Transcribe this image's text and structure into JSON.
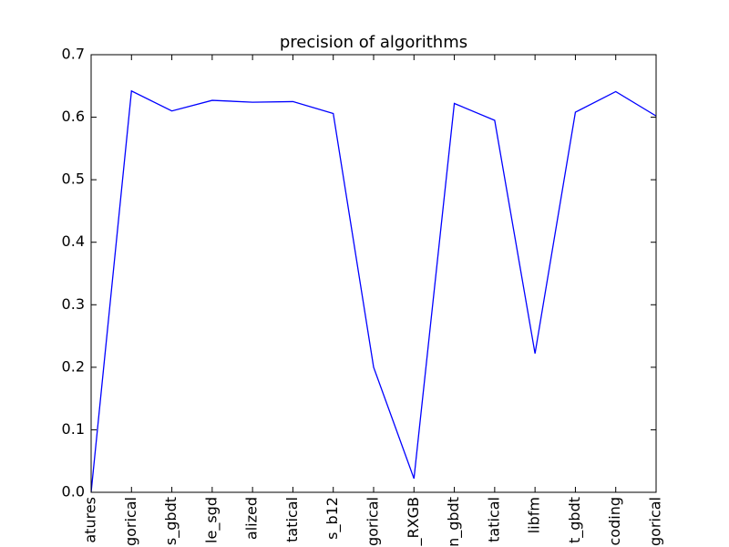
{
  "chart_data": {
    "type": "line",
    "title": "precision of algorithms",
    "xlabel": "",
    "ylabel": "",
    "ylim": [
      0,
      0.7
    ],
    "y_ticks": [
      "0.0",
      "0.1",
      "0.2",
      "0.3",
      "0.4",
      "0.5",
      "0.6",
      "0.7"
    ],
    "grid": false,
    "categories": [
      "atures",
      "gorical",
      "s_gbdt",
      "le_sgd",
      "alized",
      "tatical",
      "s_b12",
      "gorical",
      "_RXGB",
      "n_gbdt",
      "tatical",
      "libfm",
      "t_gbdt",
      "coding",
      "gorical"
    ],
    "series": [
      {
        "color": "#0000ff",
        "values": [
          0.0,
          0.642,
          0.61,
          0.627,
          0.624,
          0.625,
          0.606,
          0.2,
          0.022,
          0.622,
          0.595,
          0.222,
          0.608,
          0.641,
          0.602
        ]
      }
    ]
  }
}
